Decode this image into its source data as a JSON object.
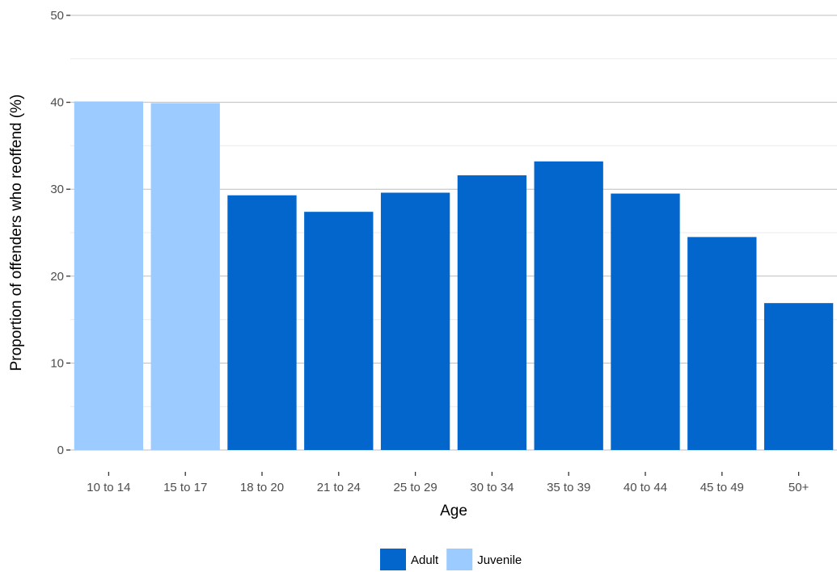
{
  "chart_data": {
    "type": "bar",
    "categories": [
      "10 to 14",
      "15 to 17",
      "18 to 20",
      "21 to 24",
      "25 to 29",
      "30 to 34",
      "35 to 39",
      "40 to 44",
      "45 to 49",
      "50+"
    ],
    "values": [
      40.1,
      39.9,
      29.3,
      27.4,
      29.6,
      31.6,
      33.2,
      29.5,
      24.5,
      16.9
    ],
    "groups": [
      "Juvenile",
      "Juvenile",
      "Adult",
      "Adult",
      "Adult",
      "Adult",
      "Adult",
      "Adult",
      "Adult",
      "Adult"
    ],
    "title": "",
    "xlabel": "Age",
    "ylabel": "Proportion of offenders who reoffend (%)",
    "ylim": [
      0,
      50
    ],
    "yticks": [
      0,
      10,
      20,
      30,
      40,
      50
    ],
    "grid": true,
    "legend": {
      "position": "bottom",
      "entries": [
        {
          "name": "Adult",
          "color": "#0366cc"
        },
        {
          "name": "Juvenile",
          "color": "#9ccbff"
        }
      ]
    }
  }
}
